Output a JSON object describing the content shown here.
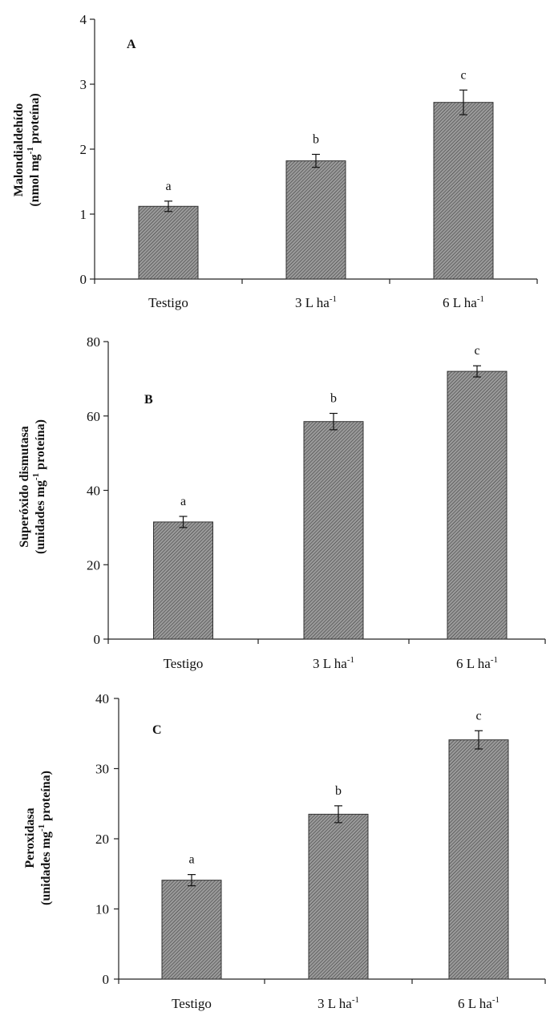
{
  "chart_data": [
    {
      "type": "bar",
      "panel_label": "A",
      "categories": [
        "Testigo",
        "3 L ha",
        "6 L ha"
      ],
      "category_superscripts": [
        "",
        "-1",
        "-1"
      ],
      "values": [
        1.12,
        1.82,
        2.72
      ],
      "errors": [
        0.08,
        0.1,
        0.19
      ],
      "significance": [
        "a",
        "b",
        "c"
      ],
      "ylabel_line1": "Malondialdehído",
      "ylabel_line2_before": "(nmol mg",
      "ylabel_line2_sup": "-1",
      "ylabel_line2_after": " proteína)",
      "ylim": [
        0,
        4
      ],
      "yticks": [
        "0",
        "1",
        "2",
        "3",
        "4"
      ],
      "grid": false,
      "bar_fill": "#8c8c8c"
    },
    {
      "type": "bar",
      "panel_label": "B",
      "categories": [
        "Testigo",
        "3 L ha",
        "6 L ha"
      ],
      "category_superscripts": [
        "",
        "-1",
        "-1"
      ],
      "values": [
        31.5,
        58.5,
        72.0
      ],
      "errors": [
        1.5,
        2.2,
        1.5
      ],
      "significance": [
        "a",
        "b",
        "c"
      ],
      "ylabel_line1": "Superóxido dismutasa",
      "ylabel_line2_before": "(unidades mg",
      "ylabel_line2_sup": "-1",
      "ylabel_line2_after": " proteína)",
      "ylim": [
        0,
        80
      ],
      "yticks": [
        "0",
        "20",
        "40",
        "60",
        "80"
      ],
      "grid": false,
      "bar_fill": "#8c8c8c"
    },
    {
      "type": "bar",
      "panel_label": "C",
      "categories": [
        "Testigo",
        "3 L ha",
        "6 L ha"
      ],
      "category_superscripts": [
        "",
        "-1",
        "-1"
      ],
      "values": [
        14.1,
        23.5,
        34.1
      ],
      "errors": [
        0.8,
        1.2,
        1.3
      ],
      "significance": [
        "a",
        "b",
        "c"
      ],
      "ylabel_line1": "Peroxidasa",
      "ylabel_line2_before": "(unidades mg",
      "ylabel_line2_sup": "-1",
      "ylabel_line2_after": " proteína)",
      "ylim": [
        0,
        40
      ],
      "yticks": [
        "0",
        "10",
        "20",
        "30",
        "40"
      ],
      "grid": false,
      "bar_fill": "#8c8c8c"
    }
  ]
}
